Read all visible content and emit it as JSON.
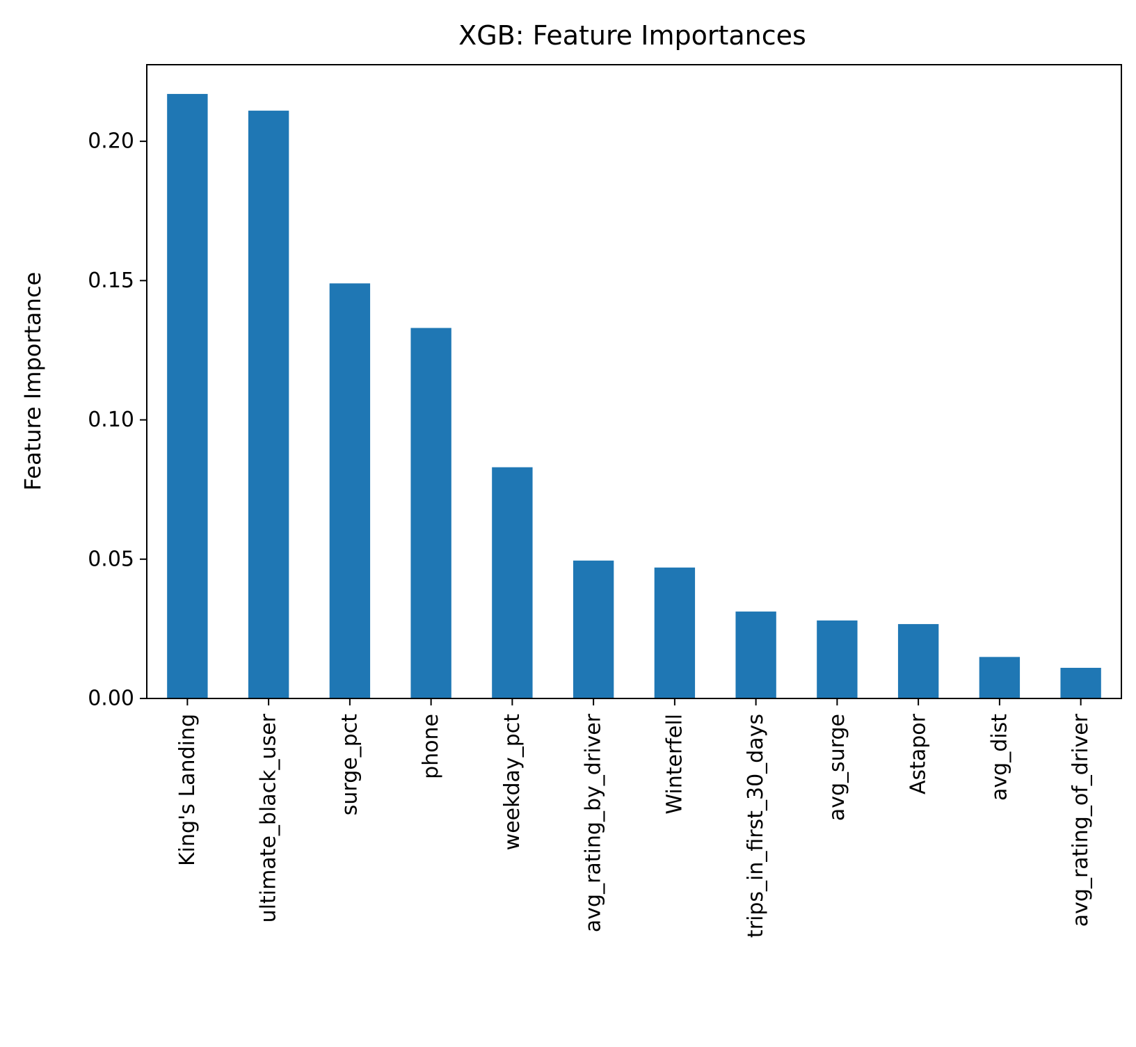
{
  "chart_data": {
    "type": "bar",
    "title": "XGB: Feature Importances",
    "xlabel": "",
    "ylabel": "Feature Importance",
    "categories": [
      "King's Landing",
      "ultimate_black_user",
      "surge_pct",
      "phone",
      "weekday_pct",
      "avg_rating_by_driver",
      "Winterfell",
      "trips_in_first_30_days",
      "avg_surge",
      "Astapor",
      "avg_dist",
      "avg_rating_of_driver"
    ],
    "values": [
      0.217,
      0.211,
      0.149,
      0.133,
      0.083,
      0.0495,
      0.047,
      0.0312,
      0.028,
      0.0267,
      0.0149,
      0.011
    ],
    "ylim": [
      0,
      0.2275
    ],
    "yticks": [
      0.0,
      0.05,
      0.1,
      0.15,
      0.2
    ],
    "ytick_labels": [
      "0.00",
      "0.05",
      "0.10",
      "0.15",
      "0.20"
    ],
    "grid": false,
    "legend": "none",
    "bar_color": "#1f77b4"
  }
}
